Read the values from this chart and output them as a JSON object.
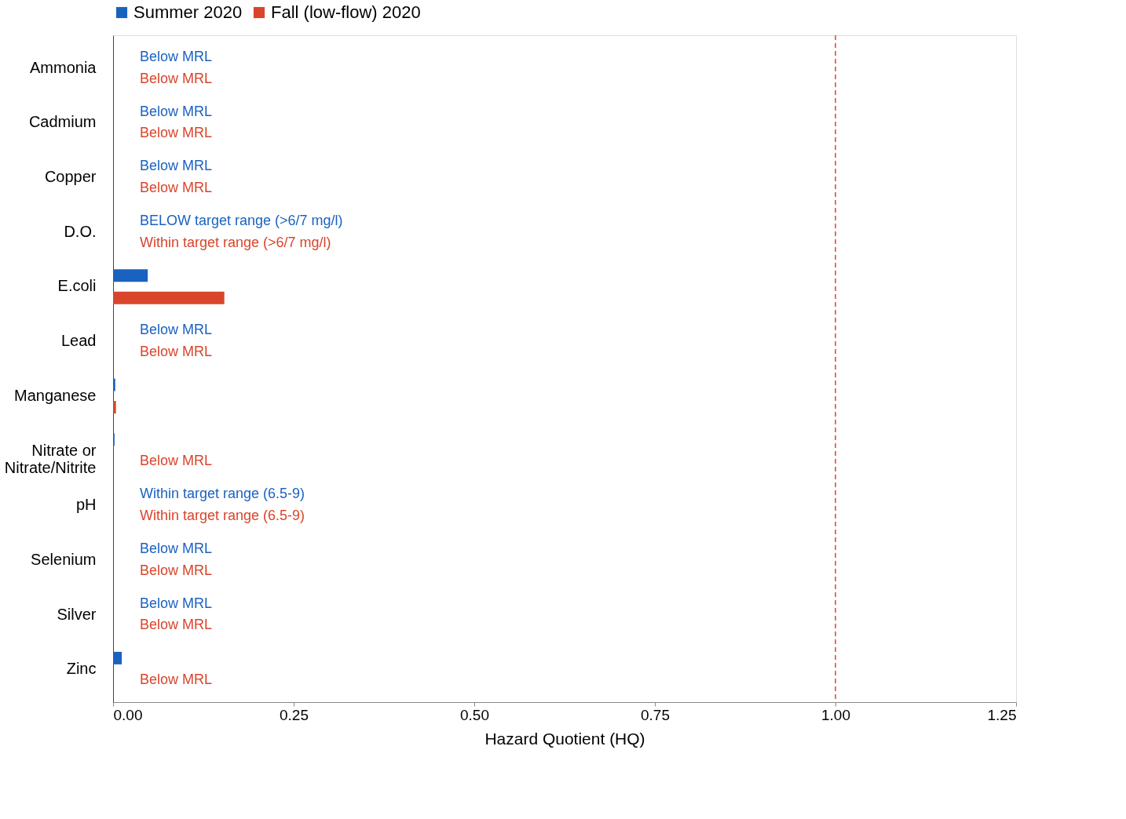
{
  "chart_data": {
    "type": "bar",
    "orientation": "horizontal",
    "xlabel": "Hazard Quotient (HQ)",
    "categories": [
      "Ammonia",
      "Cadmium",
      "Copper",
      "D.O.",
      "E.coli",
      "Lead",
      "Manganese",
      "Nitrate or\nNitrate/Nitrite",
      "pH",
      "Selenium",
      "Silver",
      "Zinc"
    ],
    "series": [
      {
        "name": "Summer 2020",
        "color": "#1a62c0",
        "values": [
          null,
          null,
          null,
          null,
          0.048,
          null,
          0.003,
          0.002,
          null,
          null,
          null,
          0.012
        ],
        "value_labels": [
          "Below MRL",
          "Below MRL",
          "Below MRL",
          "BELOW target range (>6/7 mg/l)",
          null,
          "Below MRL",
          null,
          null,
          "Within target range (6.5-9)",
          "Below MRL",
          "Below MRL",
          null
        ]
      },
      {
        "name": "Fall (low-flow) 2020",
        "color": "#d9452b",
        "values": [
          null,
          null,
          null,
          null,
          0.154,
          null,
          0.004,
          null,
          null,
          null,
          null,
          null
        ],
        "value_labels": [
          "Below MRL",
          "Below MRL",
          "Below MRL",
          "Within target range (>6/7 mg/l)",
          null,
          "Below MRL",
          null,
          "Below MRL",
          "Within target range (6.5-9)",
          "Below MRL",
          "Below MRL",
          "Below MRL"
        ]
      }
    ],
    "xlim": [
      0,
      1.25
    ],
    "xticks": [
      {
        "value": 0,
        "label": "0.00"
      },
      {
        "value": 0.25,
        "label": "0.25"
      },
      {
        "value": 0.5,
        "label": "0.50"
      },
      {
        "value": 0.75,
        "label": "0.75"
      },
      {
        "value": 1,
        "label": "1.00"
      },
      {
        "value": 1.25,
        "label": "1.25"
      }
    ],
    "ref_lines": [
      {
        "axis": "x",
        "value": 1,
        "color": "#e04040",
        "line_style": "dashed"
      }
    ],
    "legend": "top",
    "grid": false
  }
}
